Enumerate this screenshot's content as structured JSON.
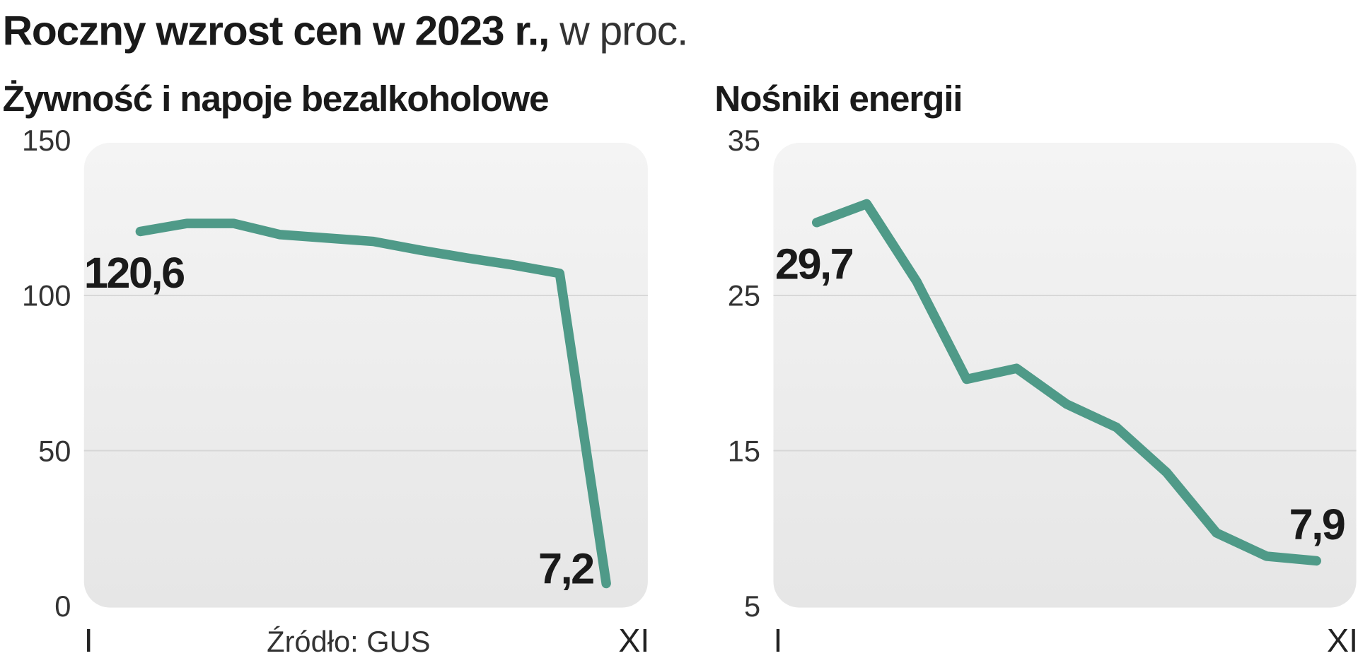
{
  "title": "Roczny wzrost cen w 2023 r.,",
  "unit_note": "w proc.",
  "source": "Źródło: GUS",
  "chart_data": [
    {
      "type": "line",
      "title": "Żywność i napoje bezalkoholowe",
      "categories": [
        "I",
        null,
        null,
        null,
        null,
        null,
        null,
        null,
        null,
        null,
        "XI"
      ],
      "series": [
        {
          "name": null,
          "color": "#4f9a88",
          "values": [
            120.6,
            123.2,
            123.2,
            119.6,
            118.5,
            117.4,
            114.6,
            112.1,
            109.8,
            107.1,
            7.2
          ],
          "value_labels": [
            "120,6",
            null,
            null,
            null,
            null,
            null,
            null,
            null,
            null,
            null,
            "7,2"
          ]
        }
      ],
      "ylim": [
        0,
        150
      ],
      "yticks": [
        0,
        50,
        100,
        150
      ],
      "grid": true
    },
    {
      "type": "line",
      "title": "Nośniki energii",
      "categories": [
        "I",
        null,
        null,
        null,
        null,
        null,
        null,
        null,
        null,
        null,
        "XI"
      ],
      "series": [
        {
          "name": null,
          "color": "#4f9a88",
          "values": [
            29.7,
            30.9,
            25.9,
            19.6,
            20.3,
            18.0,
            16.5,
            13.6,
            9.7,
            8.2,
            7.9
          ],
          "value_labels": [
            "29,7",
            null,
            null,
            null,
            null,
            null,
            null,
            null,
            null,
            null,
            "7,9"
          ]
        }
      ],
      "ylim": [
        5,
        35
      ],
      "yticks": [
        5,
        15,
        25,
        35
      ],
      "grid": true
    }
  ]
}
